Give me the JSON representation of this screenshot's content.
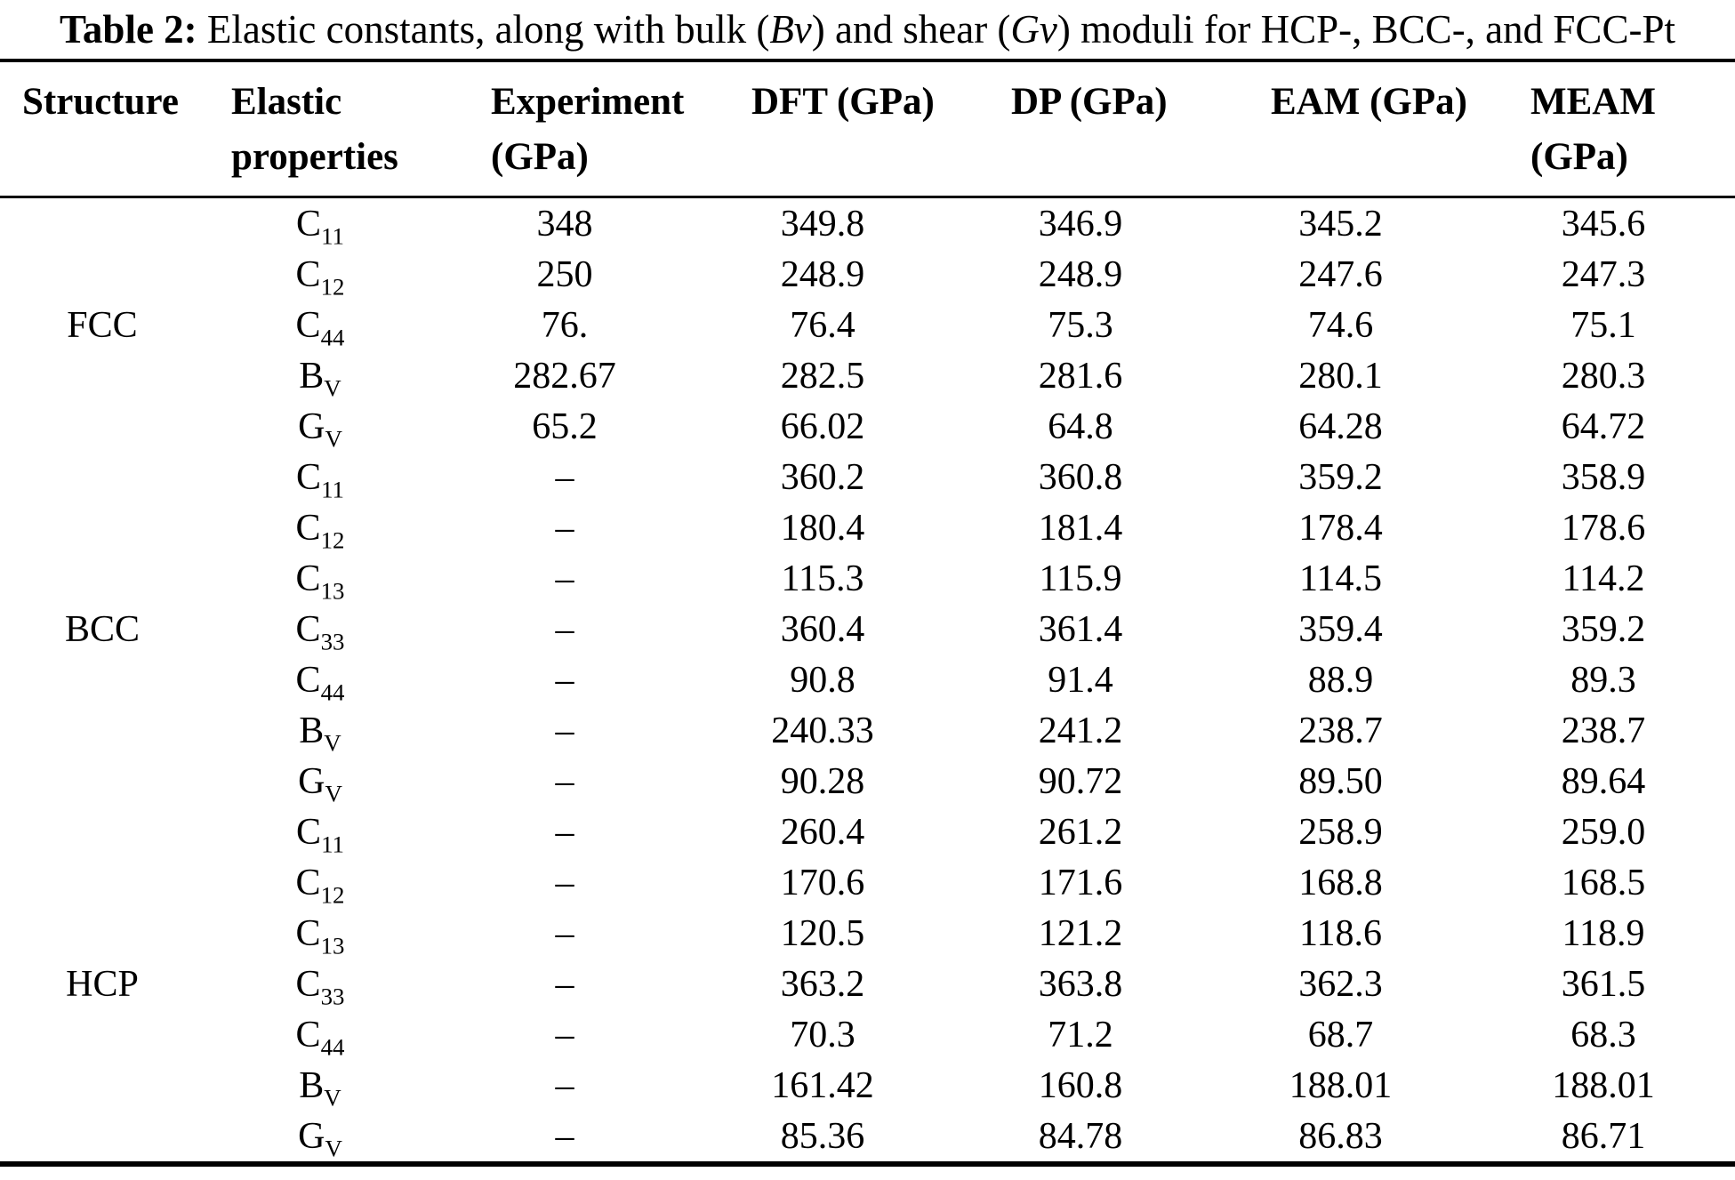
{
  "caption": {
    "label": "Table 2:",
    "seg1": " Elastic constants, along with bulk (",
    "italic1": "Bv",
    "seg2": ") and shear (",
    "italic2": "Gv",
    "seg3": ") moduli for HCP-, BCC-, and FCC-Pt"
  },
  "table": {
    "columns": [
      {
        "line1": "Structure",
        "line2": ""
      },
      {
        "line1": "Elastic",
        "line2": "properties"
      },
      {
        "line1": "Experiment",
        "line2": "(GPa)"
      },
      {
        "line1": "DFT (GPa)",
        "line2": ""
      },
      {
        "line1": "DP (GPa)",
        "line2": ""
      },
      {
        "line1": "EAM (GPa)",
        "line2": ""
      },
      {
        "line1": "MEAM",
        "line2": "(GPa)"
      }
    ],
    "groups": [
      {
        "structure": "FCC",
        "rows": [
          {
            "prop": "C",
            "sub": "11",
            "values": [
              "348",
              "349.8",
              "346.9",
              "345.2",
              "345.6"
            ]
          },
          {
            "prop": "C",
            "sub": "12",
            "values": [
              "250",
              "248.9",
              "248.9",
              "247.6",
              "247.3"
            ]
          },
          {
            "prop": "C",
            "sub": "44",
            "values": [
              "76.",
              "76.4",
              "75.3",
              "74.6",
              "75.1"
            ]
          },
          {
            "prop": "B",
            "sub": "V",
            "values": [
              "282.67",
              "282.5",
              "281.6",
              "280.1",
              "280.3"
            ]
          },
          {
            "prop": "G",
            "sub": "V",
            "values": [
              "65.2",
              "66.02",
              "64.8",
              "64.28",
              "64.72"
            ]
          }
        ]
      },
      {
        "structure": "BCC",
        "rows": [
          {
            "prop": "C",
            "sub": "11",
            "values": [
              "–",
              "360.2",
              "360.8",
              "359.2",
              "358.9"
            ]
          },
          {
            "prop": "C",
            "sub": "12",
            "values": [
              "–",
              "180.4",
              "181.4",
              "178.4",
              "178.6"
            ]
          },
          {
            "prop": "C",
            "sub": "13",
            "values": [
              "–",
              "115.3",
              "115.9",
              "114.5",
              "114.2"
            ]
          },
          {
            "prop": "C",
            "sub": "33",
            "values": [
              "–",
              "360.4",
              "361.4",
              "359.4",
              "359.2"
            ]
          },
          {
            "prop": "C",
            "sub": "44",
            "values": [
              "–",
              "90.8",
              "91.4",
              "88.9",
              "89.3"
            ]
          },
          {
            "prop": "B",
            "sub": "V",
            "values": [
              "–",
              "240.33",
              "241.2",
              "238.7",
              "238.7"
            ]
          },
          {
            "prop": "G",
            "sub": "V",
            "values": [
              "–",
              "90.28",
              "90.72",
              "89.50",
              "89.64"
            ]
          }
        ]
      },
      {
        "structure": "HCP",
        "rows": [
          {
            "prop": "C",
            "sub": "11",
            "values": [
              "–",
              "260.4",
              "261.2",
              "258.9",
              "259.0"
            ]
          },
          {
            "prop": "C",
            "sub": "12",
            "values": [
              "–",
              "170.6",
              "171.6",
              "168.8",
              "168.5"
            ]
          },
          {
            "prop": "C",
            "sub": "13",
            "values": [
              "–",
              "120.5",
              "121.2",
              "118.6",
              "118.9"
            ]
          },
          {
            "prop": "C",
            "sub": "33",
            "values": [
              "–",
              "363.2",
              "363.8",
              "362.3",
              "361.5"
            ]
          },
          {
            "prop": "C",
            "sub": "44",
            "values": [
              "–",
              "70.3",
              "71.2",
              "68.7",
              "68.3"
            ]
          },
          {
            "prop": "B",
            "sub": "V",
            "values": [
              "–",
              "161.42",
              "160.8",
              "188.01",
              "188.01"
            ]
          },
          {
            "prop": "G",
            "sub": "V",
            "values": [
              "–",
              "85.36",
              "84.78",
              "86.83",
              "86.71"
            ]
          }
        ]
      }
    ]
  }
}
